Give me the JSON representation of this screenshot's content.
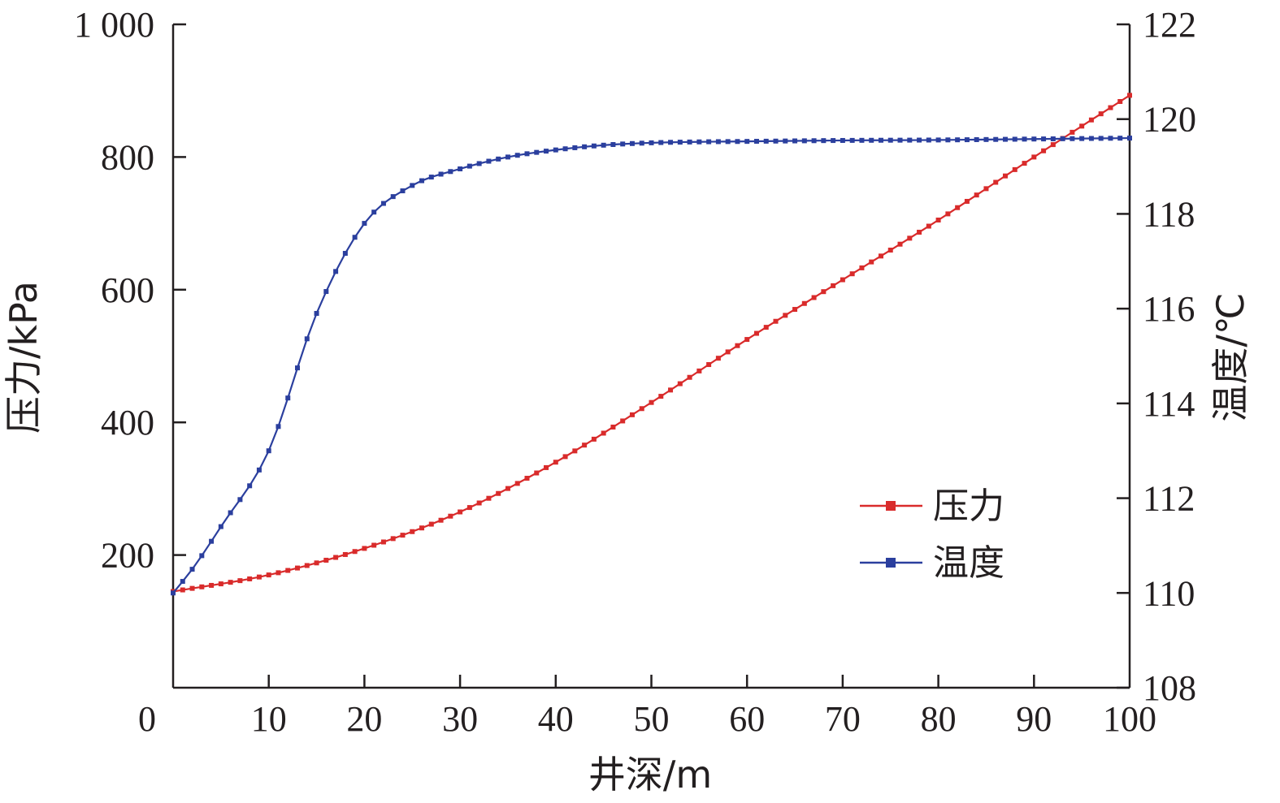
{
  "chart_data": {
    "type": "line",
    "x_axis": {
      "label": "井深/m",
      "range": [
        0,
        100
      ],
      "ticks": [
        0,
        10,
        20,
        30,
        40,
        50,
        60,
        70,
        80,
        90,
        100
      ],
      "tick_labels": [
        "0",
        "10",
        "20",
        "30",
        "40",
        "50",
        "60",
        "70",
        "80",
        "90",
        "100"
      ]
    },
    "y_axis_left": {
      "label": "压力/kPa",
      "range": [
        0,
        1000
      ],
      "ticks": [
        200,
        400,
        600,
        800,
        1000
      ],
      "tick_labels": [
        "200",
        "400",
        "600",
        "800",
        "1 000"
      ]
    },
    "y_axis_right": {
      "label": "温度/℃",
      "range": [
        108,
        122
      ],
      "ticks": [
        108,
        110,
        112,
        114,
        116,
        118,
        120,
        122
      ],
      "tick_labels": [
        "108",
        "110",
        "112",
        "114",
        "116",
        "118",
        "120",
        "122"
      ]
    },
    "legend_position": "middle-right",
    "grid": false,
    "series": [
      {
        "name": "压力",
        "axis": "left",
        "color": "#d92b2b",
        "marker": "square",
        "x": [
          0,
          10,
          20,
          30,
          40,
          50,
          60,
          70,
          80,
          90,
          100
        ],
        "values": [
          145,
          170,
          210,
          265,
          340,
          430,
          525,
          615,
          705,
          800,
          893
        ]
      },
      {
        "name": "温度",
        "axis": "right",
        "color": "#2b3f9e",
        "marker": "square",
        "x": [
          0,
          2,
          5,
          10,
          15,
          20,
          25,
          30,
          35,
          40,
          45,
          50,
          55,
          60,
          70,
          80,
          90,
          100
        ],
        "values": [
          110.0,
          110.5,
          111.4,
          113.0,
          115.9,
          117.8,
          118.6,
          118.95,
          119.2,
          119.35,
          119.45,
          119.5,
          119.52,
          119.53,
          119.55,
          119.56,
          119.58,
          119.6
        ]
      }
    ]
  }
}
